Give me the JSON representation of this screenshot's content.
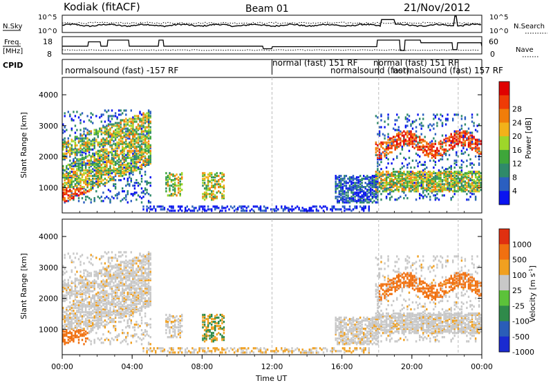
{
  "header": {
    "station": "Kodiak  (fitACF)",
    "beam": "Beam 01",
    "date": "21/Nov/2012"
  },
  "noise_panel": {
    "left_label": "N.Sky",
    "left_ticks": [
      "10^5",
      "10^0"
    ],
    "right_ticks": [
      "10^5",
      "10^0"
    ],
    "right_label": "N.Search"
  },
  "freq_panel": {
    "left_label": "Freq.",
    "left_unit": "[MHz]",
    "left_ticks": [
      "18",
      "8"
    ],
    "right_ticks": [
      "60",
      "0"
    ],
    "right_label": "Nave"
  },
  "cpid": {
    "label": "CPID",
    "segments": [
      {
        "text": "normalsound (fast) -157 RF",
        "start_hr": 0.0
      },
      {
        "text": "normal (fast) 151 RF",
        "start_hr": 12.0
      },
      {
        "text": "normalsound (fast)",
        "start_hr": 16.7
      },
      {
        "text": "normal (fast) 151 RF",
        "start_hr": 18.1
      },
      {
        "text": "normalsound (fast) 157 RF",
        "start_hr": 21.9
      }
    ]
  },
  "chart_data": [
    {
      "type": "heatmap",
      "name": "power",
      "ylabel": "Slant Range [km]",
      "yticks": [
        "1000",
        "2000",
        "3000",
        "4000"
      ],
      "ylim": [
        180,
        4560
      ],
      "colorbar": {
        "label": "Power [dB]",
        "ticks": [
          "4",
          "8",
          "12",
          "16",
          "20",
          "24",
          "28"
        ],
        "colors": [
          "#0a14f0",
          "#2b5fc0",
          "#2f8a6a",
          "#3ea63a",
          "#9ed62a",
          "#f2b21a",
          "#f07d0a",
          "#ee3b06",
          "#e00000"
        ]
      }
    },
    {
      "type": "heatmap",
      "name": "velocity",
      "ylabel": "Slant Range [km]",
      "yticks": [
        "1000",
        "2000",
        "3000",
        "4000"
      ],
      "ylim": [
        180,
        4560
      ],
      "colorbar": {
        "label": "Velocity [m s^-1]",
        "ticks": [
          "1000",
          "500",
          "100",
          "25",
          "-25",
          "-100",
          "-500",
          "-1000"
        ],
        "colors": [
          "#1a2ad0",
          "#2a5db8",
          "#2f8a4a",
          "#5cc23a",
          "#c8c8c8",
          "#f0a020",
          "#f07010",
          "#e03010"
        ]
      }
    }
  ],
  "time_axis": {
    "xlabel": "Time UT",
    "ticks": [
      "00:00",
      "04:00",
      "08:00",
      "12:00",
      "16:00",
      "20:00",
      "00:00"
    ]
  }
}
